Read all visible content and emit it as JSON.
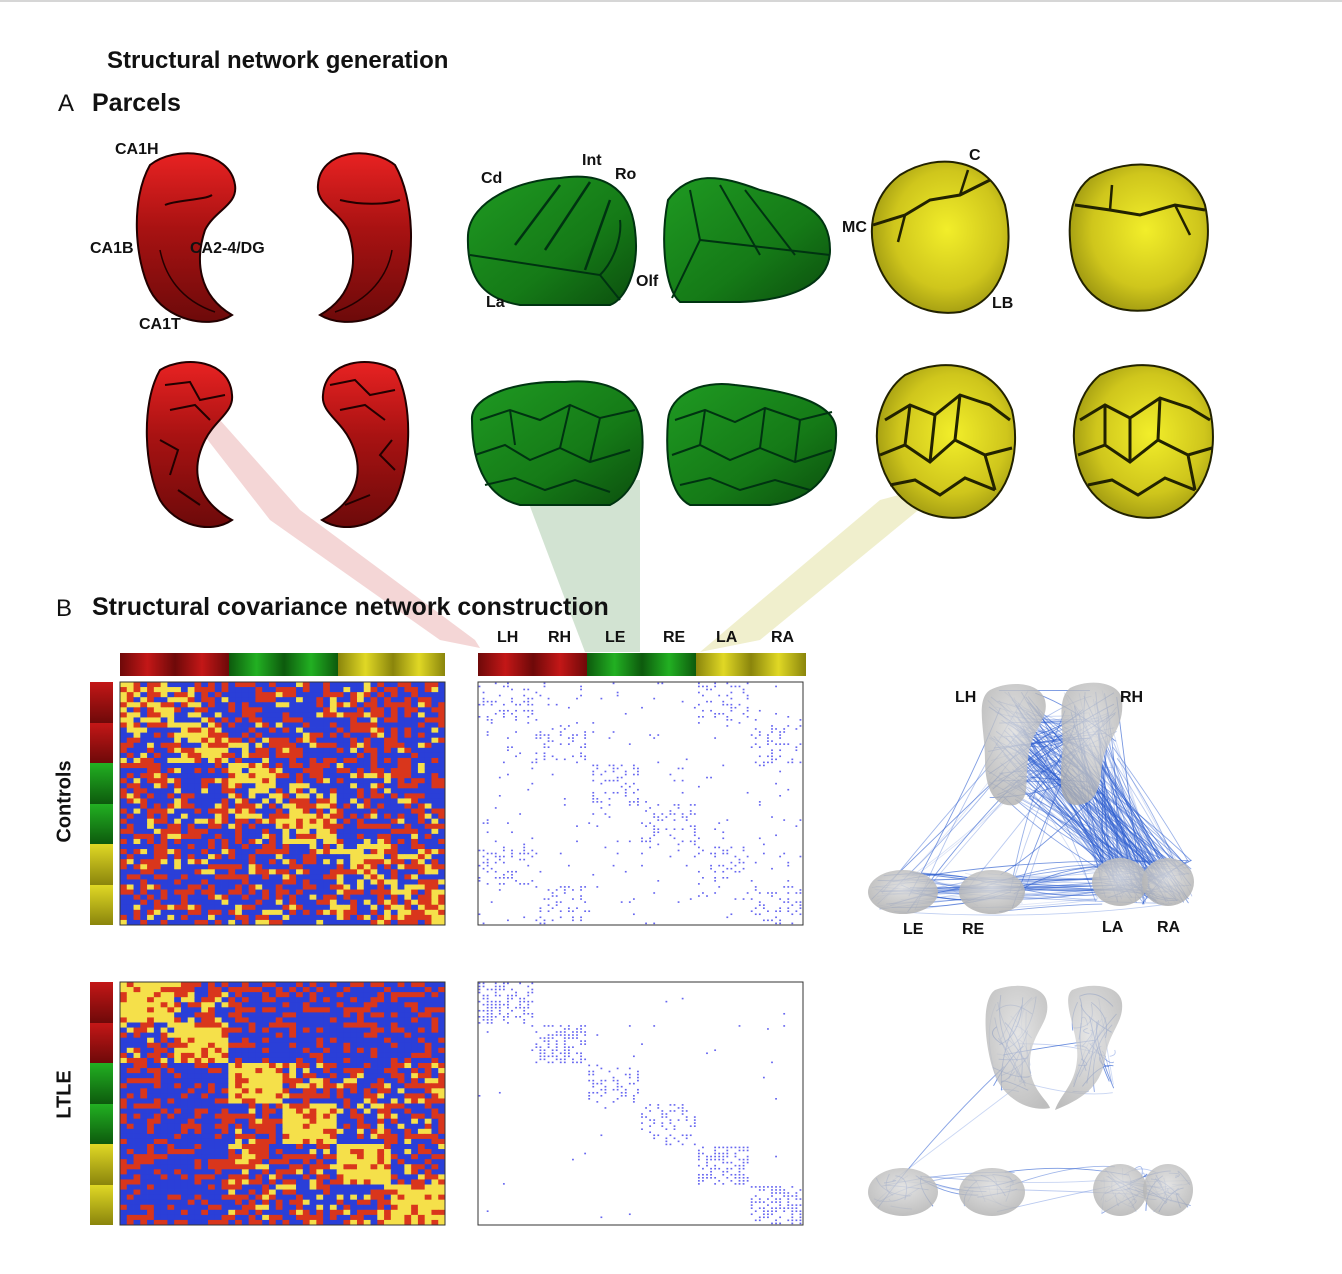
{
  "title": "Structural network generation",
  "panel_a": {
    "letter": "A",
    "title": "Parcels"
  },
  "panel_b": {
    "letter": "B",
    "title": "Structural covariance network construction"
  },
  "hippocampus_labels": [
    "CA1H",
    "CA1B",
    "CA2-4/DG",
    "CA1T"
  ],
  "entorhinal_labels": [
    "Cd",
    "Int",
    "Ro",
    "Olf",
    "La"
  ],
  "amygdala_labels": [
    "C",
    "MC",
    "LB"
  ],
  "structure_labels": [
    "LH",
    "RH",
    "LE",
    "RE",
    "LA",
    "RA"
  ],
  "row_labels": [
    "Controls",
    "LTLE"
  ],
  "network_labels": {
    "top": "LH",
    "top2": "RH",
    "bottom": [
      "LE",
      "RE",
      "LA",
      "RA"
    ]
  },
  "colors": {
    "hippocampus": "#b31010",
    "entorhinal": "#1f8c1f",
    "amygdala": "#c9c31a",
    "matrix_blue": "#2a3fd8",
    "matrix_red": "#d9361c",
    "matrix_yellow": "#f5e04a",
    "binary_dot": "#6666f0",
    "edge": "#2f5fd0"
  }
}
